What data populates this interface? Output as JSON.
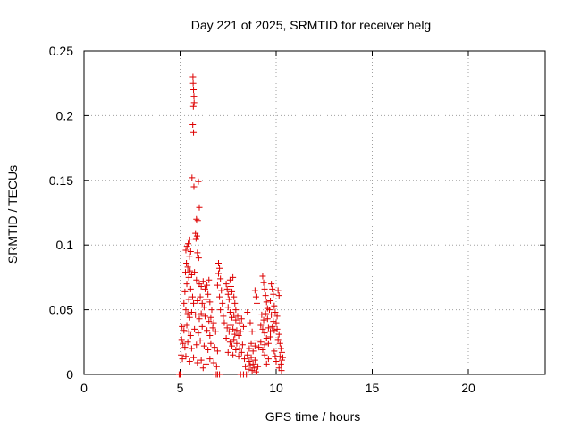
{
  "chart_data": {
    "type": "scatter",
    "title": "Day 221 of 2025, SRMTID for receiver helg",
    "xlabel": "GPS time / hours",
    "ylabel": "SRMTID / TECUs",
    "xlim": [
      0,
      24
    ],
    "ylim": [
      0,
      0.25
    ],
    "xticks": [
      0,
      5,
      10,
      15,
      20
    ],
    "yticks": [
      0,
      0.05,
      0.1,
      0.15,
      0.2,
      0.25
    ],
    "xtick_labels": [
      "0",
      "5",
      "10",
      "15",
      "20"
    ],
    "ytick_labels": [
      "0",
      "0.05",
      "0.1",
      "0.15",
      "0.2",
      "0.25"
    ],
    "grid": true,
    "marker": "+",
    "marker_color": "#dd0000",
    "series": [
      {
        "name": "SRMTID",
        "points": [
          [
            5.67,
            0.23
          ],
          [
            5.68,
            0.225
          ],
          [
            5.7,
            0.22
          ],
          [
            5.72,
            0.215
          ],
          [
            5.73,
            0.21
          ],
          [
            5.69,
            0.207
          ],
          [
            5.66,
            0.193
          ],
          [
            5.7,
            0.187
          ],
          [
            5.62,
            0.152
          ],
          [
            5.72,
            0.145
          ],
          [
            5.95,
            0.149
          ],
          [
            6.0,
            0.129
          ],
          [
            5.85,
            0.12
          ],
          [
            5.92,
            0.119
          ],
          [
            5.8,
            0.109
          ],
          [
            5.88,
            0.107
          ],
          [
            5.83,
            0.105
          ],
          [
            5.5,
            0.104
          ],
          [
            5.42,
            0.101
          ],
          [
            5.36,
            0.099
          ],
          [
            5.3,
            0.096
          ],
          [
            5.55,
            0.095
          ],
          [
            5.48,
            0.091
          ],
          [
            5.9,
            0.094
          ],
          [
            5.97,
            0.09
          ],
          [
            5.33,
            0.086
          ],
          [
            5.4,
            0.083
          ],
          [
            5.52,
            0.08
          ],
          [
            5.6,
            0.077
          ],
          [
            5.28,
            0.079
          ],
          [
            5.45,
            0.075
          ],
          [
            5.75,
            0.079
          ],
          [
            5.85,
            0.073
          ],
          [
            6.0,
            0.07
          ],
          [
            6.1,
            0.068
          ],
          [
            6.2,
            0.072
          ],
          [
            6.3,
            0.066
          ],
          [
            6.4,
            0.069
          ],
          [
            6.5,
            0.073
          ],
          [
            5.35,
            0.07
          ],
          [
            5.55,
            0.066
          ],
          [
            5.65,
            0.06
          ],
          [
            5.25,
            0.064
          ],
          [
            5.45,
            0.058
          ],
          [
            5.7,
            0.055
          ],
          [
            5.9,
            0.057
          ],
          [
            6.05,
            0.06
          ],
          [
            6.15,
            0.055
          ],
          [
            6.25,
            0.052
          ],
          [
            6.35,
            0.058
          ],
          [
            6.45,
            0.062
          ],
          [
            6.55,
            0.056
          ],
          [
            6.65,
            0.05
          ],
          [
            5.2,
            0.055
          ],
          [
            5.3,
            0.05
          ],
          [
            5.4,
            0.047
          ],
          [
            5.5,
            0.044
          ],
          [
            5.6,
            0.048
          ],
          [
            5.8,
            0.046
          ],
          [
            6.0,
            0.043
          ],
          [
            6.1,
            0.047
          ],
          [
            6.3,
            0.045
          ],
          [
            6.5,
            0.041
          ],
          [
            6.6,
            0.044
          ],
          [
            6.75,
            0.04
          ],
          [
            5.1,
            0.037
          ],
          [
            5.2,
            0.034
          ],
          [
            5.35,
            0.038
          ],
          [
            5.45,
            0.033
          ],
          [
            5.55,
            0.03
          ],
          [
            5.75,
            0.035
          ],
          [
            5.95,
            0.032
          ],
          [
            6.15,
            0.037
          ],
          [
            6.4,
            0.034
          ],
          [
            6.55,
            0.03
          ],
          [
            6.7,
            0.036
          ],
          [
            6.85,
            0.033
          ],
          [
            5.08,
            0.027
          ],
          [
            5.15,
            0.024
          ],
          [
            5.25,
            0.021
          ],
          [
            5.4,
            0.025
          ],
          [
            5.6,
            0.02
          ],
          [
            5.85,
            0.023
          ],
          [
            6.05,
            0.026
          ],
          [
            6.25,
            0.022
          ],
          [
            6.45,
            0.019
          ],
          [
            6.6,
            0.024
          ],
          [
            6.8,
            0.021
          ],
          [
            6.95,
            0.018
          ],
          [
            5.05,
            0.015
          ],
          [
            5.12,
            0.012
          ],
          [
            5.3,
            0.014
          ],
          [
            5.5,
            0.01
          ],
          [
            5.7,
            0.013
          ],
          [
            5.9,
            0.009
          ],
          [
            6.1,
            0.011
          ],
          [
            6.35,
            0.008
          ],
          [
            6.2,
            0.005
          ],
          [
            6.55,
            0.012
          ],
          [
            6.75,
            0.009
          ],
          [
            6.9,
            0.006
          ],
          [
            4.95,
            0.0
          ],
          [
            5.0,
            0.0
          ],
          [
            6.88,
            0.0
          ],
          [
            6.95,
            0.0
          ],
          [
            7.05,
            0.0
          ],
          [
            8.15,
            0.0
          ],
          [
            8.3,
            0.0
          ],
          [
            8.45,
            0.0
          ],
          [
            7.0,
            0.086
          ],
          [
            7.05,
            0.082
          ],
          [
            7.0,
            0.078
          ],
          [
            7.1,
            0.074
          ],
          [
            6.95,
            0.069
          ],
          [
            7.15,
            0.065
          ],
          [
            7.05,
            0.06
          ],
          [
            7.2,
            0.055
          ],
          [
            7.1,
            0.05
          ],
          [
            7.25,
            0.045
          ],
          [
            7.4,
            0.07
          ],
          [
            7.45,
            0.066
          ],
          [
            7.5,
            0.062
          ],
          [
            7.55,
            0.058
          ],
          [
            7.6,
            0.073
          ],
          [
            7.65,
            0.068
          ],
          [
            7.7,
            0.064
          ],
          [
            7.75,
            0.075
          ],
          [
            7.8,
            0.06
          ],
          [
            7.85,
            0.055
          ],
          [
            7.9,
            0.05
          ],
          [
            7.5,
            0.052
          ],
          [
            7.6,
            0.048
          ],
          [
            7.7,
            0.044
          ],
          [
            7.8,
            0.046
          ],
          [
            7.9,
            0.042
          ],
          [
            8.0,
            0.045
          ],
          [
            8.1,
            0.04
          ],
          [
            8.2,
            0.043
          ],
          [
            7.3,
            0.04
          ],
          [
            7.45,
            0.036
          ],
          [
            7.55,
            0.033
          ],
          [
            7.65,
            0.038
          ],
          [
            7.75,
            0.035
          ],
          [
            7.85,
            0.031
          ],
          [
            7.95,
            0.034
          ],
          [
            8.05,
            0.03
          ],
          [
            8.15,
            0.033
          ],
          [
            8.3,
            0.037
          ],
          [
            7.4,
            0.028
          ],
          [
            7.6,
            0.025
          ],
          [
            7.7,
            0.022
          ],
          [
            7.8,
            0.027
          ],
          [
            7.95,
            0.024
          ],
          [
            8.1,
            0.02
          ],
          [
            8.25,
            0.023
          ],
          [
            7.5,
            0.017
          ],
          [
            7.75,
            0.015
          ],
          [
            7.9,
            0.019
          ],
          [
            8.05,
            0.014
          ],
          [
            8.2,
            0.017
          ],
          [
            8.35,
            0.012
          ],
          [
            8.5,
            0.015
          ],
          [
            8.6,
            0.01
          ],
          [
            8.7,
            0.013
          ],
          [
            8.8,
            0.008
          ],
          [
            8.9,
            0.011
          ],
          [
            8.4,
            0.006
          ],
          [
            8.55,
            0.004
          ],
          [
            8.65,
            0.007
          ],
          [
            8.75,
            0.003
          ],
          [
            8.85,
            0.005
          ],
          [
            8.95,
            0.002
          ],
          [
            9.05,
            0.006
          ],
          [
            8.6,
            0.02
          ],
          [
            8.7,
            0.024
          ],
          [
            8.8,
            0.018
          ],
          [
            8.9,
            0.022
          ],
          [
            9.0,
            0.026
          ],
          [
            9.1,
            0.021
          ],
          [
            9.2,
            0.025
          ],
          [
            9.3,
            0.019
          ],
          [
            9.4,
            0.023
          ],
          [
            9.5,
            0.028
          ],
          [
            9.6,
            0.024
          ],
          [
            9.7,
            0.029
          ],
          [
            8.5,
            0.048
          ],
          [
            8.65,
            0.04
          ],
          [
            8.75,
            0.033
          ],
          [
            8.9,
            0.065
          ],
          [
            8.95,
            0.06
          ],
          [
            9.0,
            0.055
          ],
          [
            9.3,
            0.076
          ],
          [
            9.35,
            0.071
          ],
          [
            9.4,
            0.066
          ],
          [
            9.45,
            0.061
          ],
          [
            9.5,
            0.056
          ],
          [
            9.55,
            0.051
          ],
          [
            9.25,
            0.046
          ],
          [
            9.35,
            0.042
          ],
          [
            9.45,
            0.047
          ],
          [
            9.55,
            0.043
          ],
          [
            9.65,
            0.05
          ],
          [
            9.75,
            0.046
          ],
          [
            9.85,
            0.041
          ],
          [
            9.2,
            0.038
          ],
          [
            9.3,
            0.035
          ],
          [
            9.4,
            0.032
          ],
          [
            9.6,
            0.036
          ],
          [
            9.7,
            0.033
          ],
          [
            9.8,
            0.037
          ],
          [
            9.9,
            0.034
          ],
          [
            9.75,
            0.07
          ],
          [
            9.8,
            0.066
          ],
          [
            9.85,
            0.062
          ],
          [
            9.7,
            0.057
          ],
          [
            9.9,
            0.053
          ],
          [
            9.95,
            0.048
          ],
          [
            10.05,
            0.045
          ],
          [
            10.1,
            0.065
          ],
          [
            10.15,
            0.061
          ],
          [
            10.0,
            0.04
          ],
          [
            10.05,
            0.035
          ],
          [
            10.15,
            0.031
          ],
          [
            10.1,
            0.027
          ],
          [
            10.2,
            0.024
          ],
          [
            10.25,
            0.02
          ],
          [
            10.3,
            0.017
          ],
          [
            10.2,
            0.014
          ],
          [
            10.3,
            0.011
          ],
          [
            10.25,
            0.008
          ],
          [
            10.35,
            0.013
          ],
          [
            10.15,
            0.005
          ],
          [
            10.28,
            0.003
          ],
          [
            9.9,
            0.018
          ],
          [
            9.95,
            0.014
          ],
          [
            10.0,
            0.01
          ],
          [
            9.6,
            0.012
          ],
          [
            9.5,
            0.008
          ],
          [
            9.4,
            0.015
          ]
        ]
      }
    ]
  }
}
